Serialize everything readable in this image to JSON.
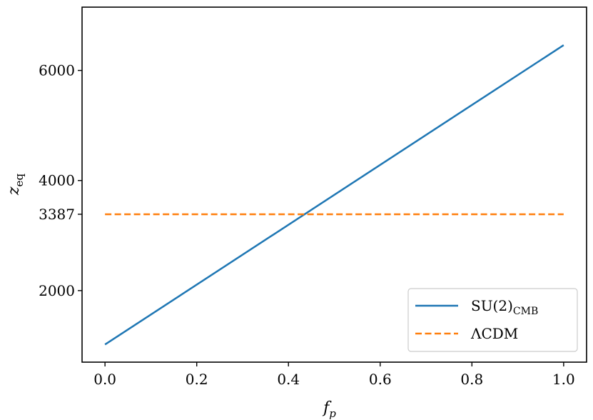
{
  "chart_data": {
    "type": "line",
    "xlabel": "f",
    "xlabel_sub": "p",
    "ylabel": "z",
    "ylabel_sub": "eq",
    "xlim": [
      -0.05,
      1.05
    ],
    "ylim": [
      700,
      7150
    ],
    "xticks": [
      0.0,
      0.2,
      0.4,
      0.6,
      0.8,
      1.0
    ],
    "xtick_labels": [
      "0.0",
      "0.2",
      "0.4",
      "0.6",
      "0.8",
      "1.0"
    ],
    "yticks": [
      2000,
      3387,
      4000,
      6000
    ],
    "ytick_labels": [
      "2000",
      "3387",
      "4000",
      "6000"
    ],
    "grid": false,
    "legend_position": "bottom-right",
    "series": [
      {
        "name": "SU(2)",
        "name_sub": "CMB",
        "style": "solid",
        "color": "#1f77b4",
        "x": [
          0.0,
          1.0
        ],
        "y": [
          1020,
          6460
        ]
      },
      {
        "name": "ΛCDM",
        "name_sub": "",
        "style": "dashed",
        "color": "#ff7f0e",
        "x": [
          0.0,
          1.0
        ],
        "y": [
          3387,
          3387
        ]
      }
    ]
  }
}
